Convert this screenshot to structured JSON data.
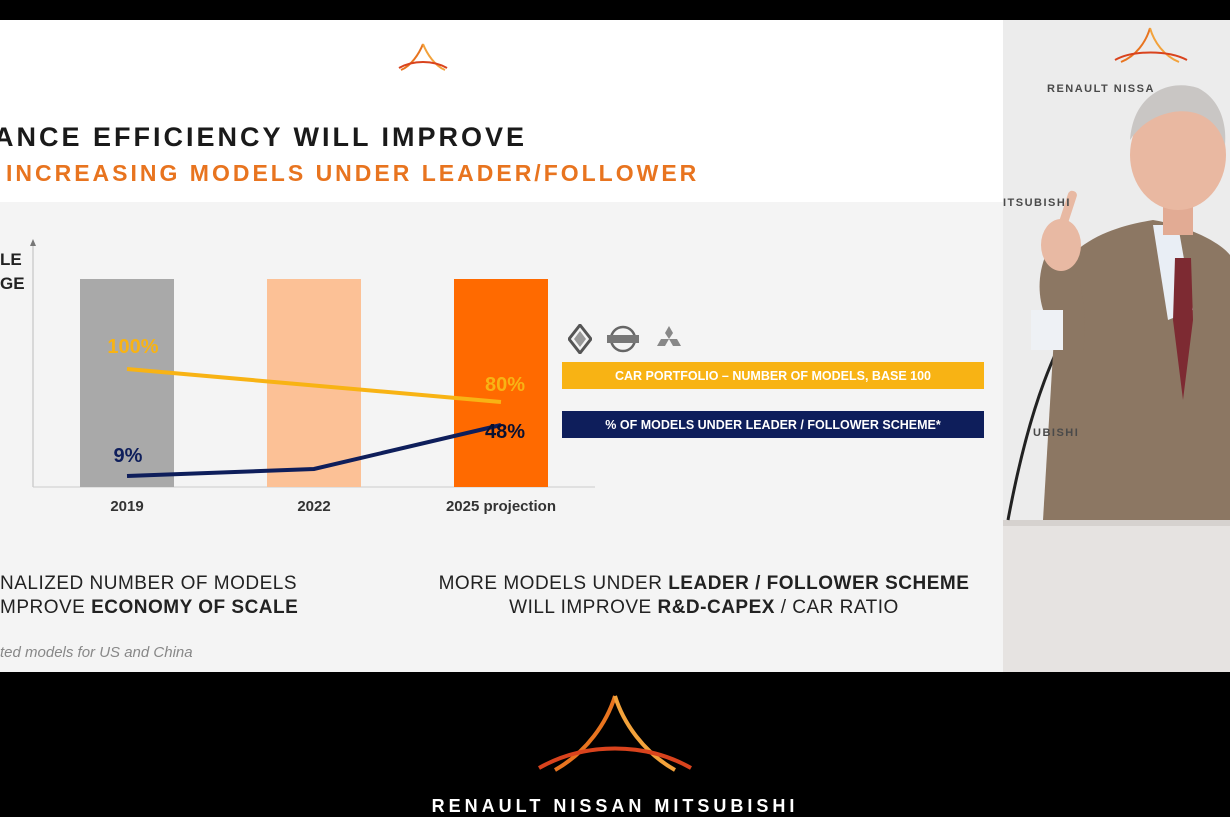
{
  "slide": {
    "title_line1": "ANCE EFFICIENCY WILL IMPROVE",
    "title_line2": " INCREASING MODELS UNDER LEADER/FOLLOWER",
    "yaxis_label_line1": "LE",
    "yaxis_label_line2": "GE",
    "legend_portfolio": "CAR PORTFOLIO – NUMBER OF MODELS, BASE 100",
    "legend_leader": "% OF MODELS UNDER LEADER / FOLLOWER SCHEME*",
    "bottom_left_line1": "NALIZED NUMBER OF MODELS",
    "bottom_left_line2_plain": "MPROVE ",
    "bottom_left_line2_bold": "ECONOMY OF SCALE",
    "bottom_right_line1_plain": "MORE MODELS UNDER ",
    "bottom_right_line1_bold": "LEADER / FOLLOWER SCHEME",
    "bottom_right_line2_plain1": "WILL IMPROVE ",
    "bottom_right_line2_bold": "R&D-CAPEX",
    "bottom_right_line2_plain2": " / CAR RATIO",
    "footnote": "ted models for US and China",
    "brand_icons": [
      "renault-logo-icon",
      "nissan-logo-icon",
      "mitsubishi-logo-icon"
    ]
  },
  "camera": {
    "wall_text_1": "RENAULT NISSA",
    "wall_text_2": "ITSUBISHI",
    "wall_text_3": "UBISHI"
  },
  "footer_brand": "RENAULT NISSAN MITSUBISHI",
  "colors": {
    "orange_title": "#e8741f",
    "bar_2019": "#a9a9a9",
    "bar_2022": "#fcc196",
    "bar_2025": "#ff6a00",
    "line_portfolio": "#f8b314",
    "line_leader": "#0e1e5b"
  },
  "chart_data": {
    "type": "bar",
    "categories": [
      "2019",
      "2022",
      "2025 projection"
    ],
    "series": [
      {
        "name": "CAR PORTFOLIO – NUMBER OF MODELS, BASE 100",
        "type": "line",
        "values": [
          100,
          null,
          80
        ],
        "labels": [
          "100%",
          "",
          "80%"
        ]
      },
      {
        "name": "% OF MODELS UNDER LEADER / FOLLOWER SCHEME*",
        "type": "line",
        "values": [
          9,
          null,
          48
        ],
        "labels": [
          "9%",
          "",
          "48%"
        ]
      }
    ]
  }
}
